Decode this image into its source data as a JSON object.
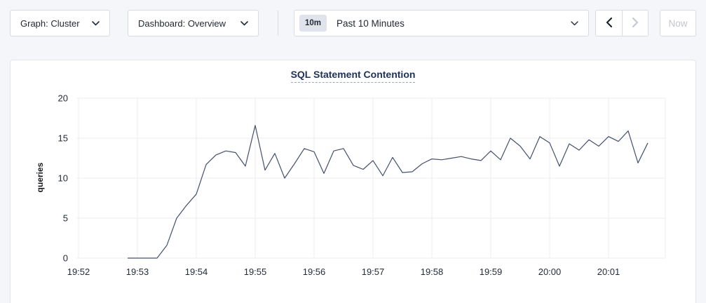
{
  "toolbar": {
    "graph_dropdown": {
      "label": "Graph: Cluster"
    },
    "dashboard_dropdown": {
      "label": "Dashboard: Overview"
    },
    "time_selector": {
      "badge": "10m",
      "label": "Past 10 Minutes"
    },
    "now_button_label": "Now"
  },
  "chart_data": {
    "type": "line",
    "title": "SQL Statement Contention",
    "xlabel": "",
    "ylabel": "queries",
    "ylim": [
      0,
      20
    ],
    "yticks": [
      0,
      5,
      10,
      15,
      20
    ],
    "xticks": [
      "19:52",
      "19:53",
      "19:54",
      "19:55",
      "19:56",
      "19:57",
      "19:58",
      "19:59",
      "20:00",
      "20:01"
    ],
    "x_start_time": "19:52:50",
    "x_interval_sec": 10,
    "grid": true,
    "legend": false,
    "series": [
      {
        "name": "queries",
        "values": [
          0,
          0,
          0,
          0,
          1.6,
          5,
          6.6,
          8,
          11.7,
          12.9,
          13.4,
          13.2,
          11.5,
          16.6,
          11,
          13.1,
          10,
          11.8,
          13.7,
          13.3,
          10.6,
          13.4,
          13.7,
          11.6,
          11.1,
          12.2,
          10.3,
          12.6,
          10.7,
          10.8,
          11.8,
          12.4,
          12.3,
          12.5,
          12.7,
          12.4,
          12.2,
          13.4,
          12.3,
          15,
          14,
          12.4,
          15.2,
          14.4,
          11.5,
          14.3,
          13.5,
          14.8,
          14,
          15.2,
          14.6,
          15.9,
          11.9,
          14.4
        ]
      }
    ]
  },
  "colors": {
    "line": "#44506e",
    "grid": "#ecedf1",
    "axis_text": "#242b39",
    "title": "#1f3156",
    "page_bg": "#f5f6fa",
    "card_border": "#e2e5ec",
    "control_border": "#d6dbe4",
    "badge_bg": "#dfe3ec",
    "disabled_text": "#bfc5d1"
  }
}
